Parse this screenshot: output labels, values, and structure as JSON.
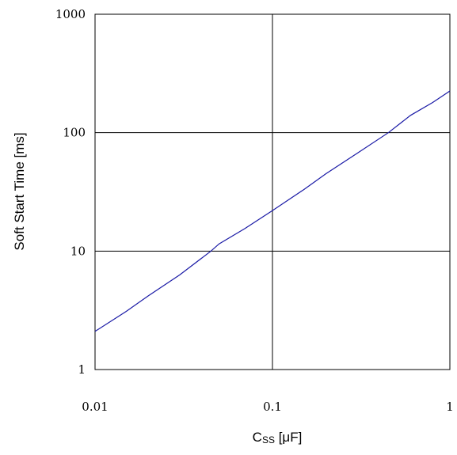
{
  "chart_data": {
    "type": "line",
    "title": "",
    "xlabel": "Css [μF]",
    "xlabel_main": "C",
    "xlabel_sub": "SS",
    "xlabel_unit": " [μF]",
    "ylabel": "Soft Start Time [ms]",
    "x_scale": "log",
    "y_scale": "log",
    "xlim": [
      0.01,
      1
    ],
    "ylim": [
      1,
      1000
    ],
    "x_ticks": [
      0.01,
      0.1,
      1
    ],
    "x_tick_labels": [
      "0.01",
      "0.1",
      "1"
    ],
    "y_ticks": [
      1,
      10,
      100,
      1000
    ],
    "y_tick_labels": [
      "1",
      "10",
      "100",
      "1000"
    ],
    "grid": true,
    "line_color": "#1a1aa6",
    "series": [
      {
        "name": "",
        "x": [
          0.01,
          0.015,
          0.02,
          0.03,
          0.045,
          0.05,
          0.07,
          0.1,
          0.15,
          0.2,
          0.3,
          0.45,
          0.6,
          0.8,
          1.0
        ],
        "y": [
          2.1,
          3.1,
          4.2,
          6.3,
          10.0,
          11.5,
          15.5,
          22.0,
          33.0,
          45.0,
          67.0,
          100.0,
          140.0,
          180.0,
          225.0
        ]
      }
    ]
  }
}
